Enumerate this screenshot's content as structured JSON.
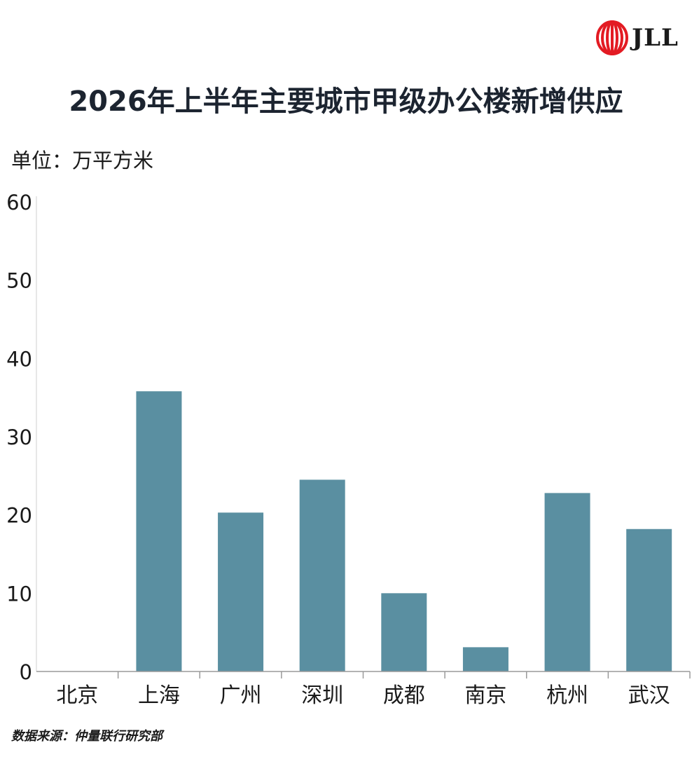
{
  "brand": {
    "logo_text": "JLL",
    "logo_color": "#e31b23"
  },
  "title": "2026年上半年主要城市甲级办公楼新增供应",
  "unit_label": "单位：万平方米",
  "source": "数据来源：仲量联行研究部",
  "colors": {
    "bar": "#5a8fa1",
    "axis": "#9a9a9a",
    "text": "#1a1a1a"
  },
  "chart_data": {
    "type": "bar",
    "title": "2026年上半年主要城市甲级办公楼新增供应",
    "ylabel": "单位：万平方米",
    "xlabel": "",
    "categories": [
      "北京",
      "上海",
      "广州",
      "深圳",
      "成都",
      "南京",
      "杭州",
      "武汉"
    ],
    "values": [
      0,
      35.8,
      20.3,
      24.5,
      10.0,
      3.1,
      22.8,
      18.2
    ],
    "ylim": [
      0,
      60
    ],
    "yticks": [
      0,
      10,
      20,
      30,
      40,
      50,
      60
    ],
    "grid": false,
    "legend": "none"
  }
}
